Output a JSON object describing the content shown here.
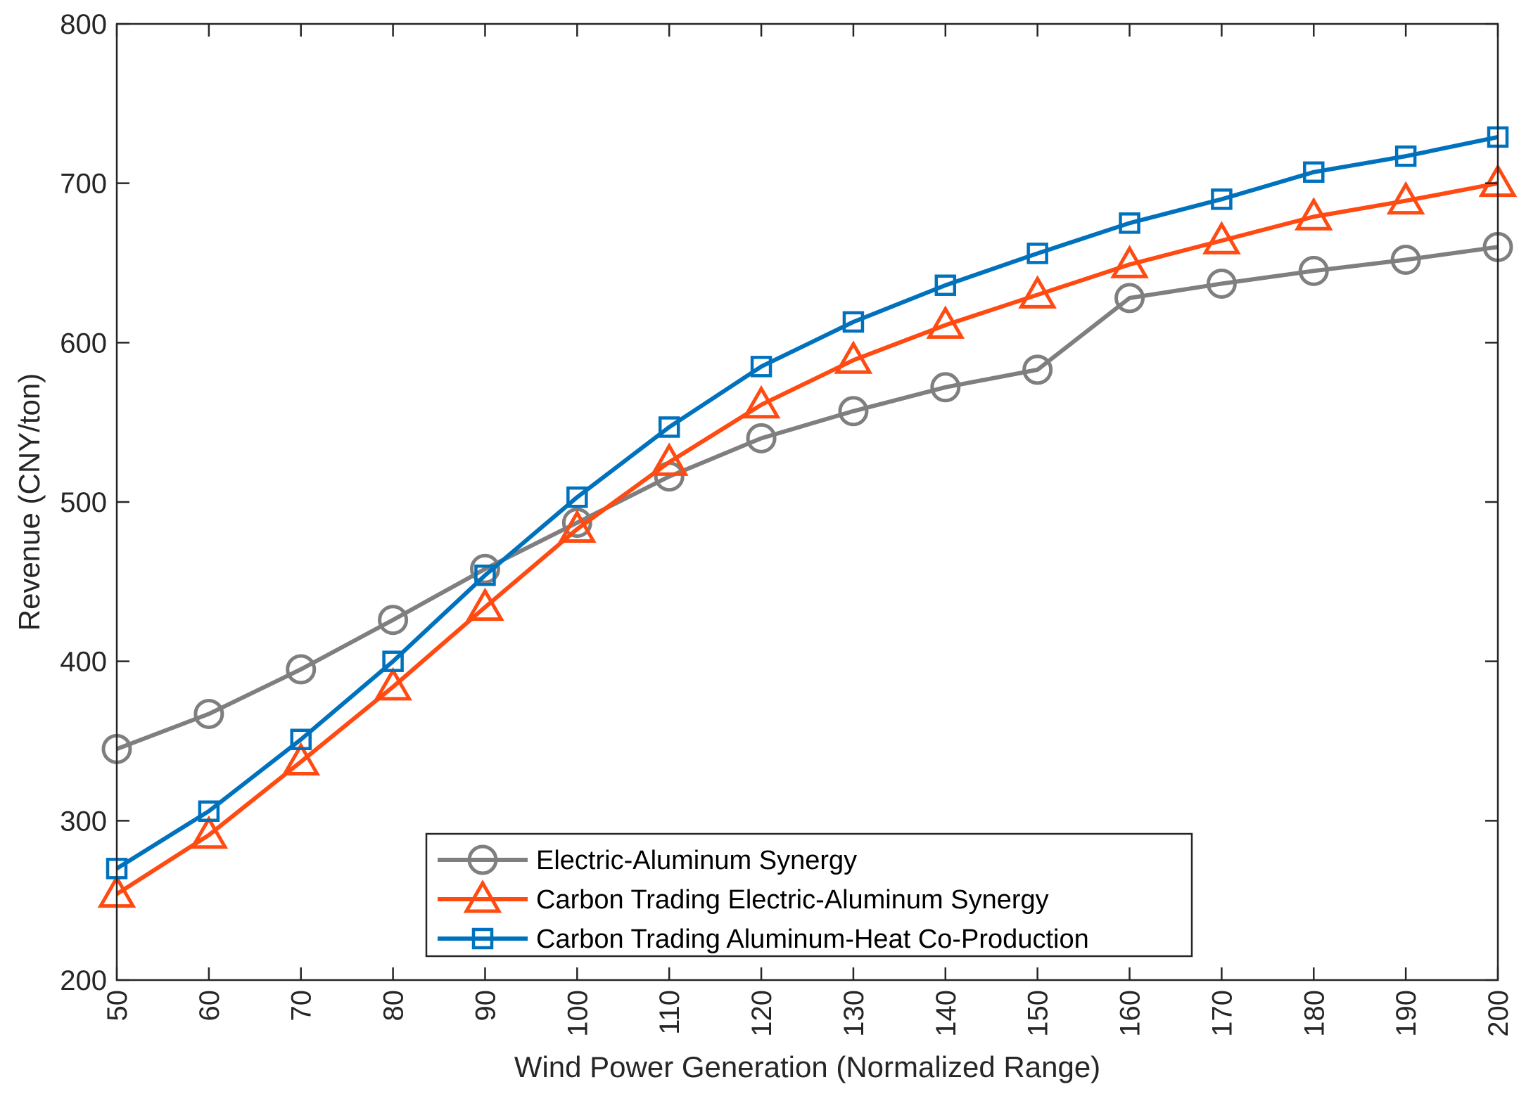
{
  "chart_data": {
    "type": "line",
    "title": "",
    "xlabel": "Wind Power Generation (Normalized Range)",
    "ylabel": "Revenue (CNY/ton)",
    "x": [
      50,
      60,
      70,
      80,
      90,
      100,
      110,
      120,
      130,
      140,
      150,
      160,
      170,
      180,
      190,
      200
    ],
    "xticks": [
      "50",
      "60",
      "70",
      "80",
      "90",
      "100",
      "110",
      "120",
      "130",
      "140",
      "150",
      "160",
      "170",
      "180",
      "190",
      "200"
    ],
    "xlim": [
      50,
      200
    ],
    "ylim": [
      200,
      800
    ],
    "yticks": [
      "200",
      "300",
      "400",
      "500",
      "600",
      "700",
      "800"
    ],
    "grid": false,
    "legend_position": "bottom-center",
    "series": [
      {
        "name": "Electric-Aluminum Synergy",
        "marker": "circle",
        "color": "#7f7f7f",
        "values": [
          345,
          367,
          395,
          426,
          458,
          487,
          516,
          540,
          557,
          572,
          583,
          628,
          637,
          645,
          652,
          660
        ]
      },
      {
        "name": "Carbon Trading Electric-Aluminum Synergy",
        "marker": "triangle",
        "color": "#ff4b12",
        "values": [
          254,
          291,
          337,
          384,
          434,
          483,
          525,
          561,
          589,
          611,
          630,
          649,
          664,
          679,
          689,
          700
        ]
      },
      {
        "name": "Carbon Trading Aluminum-Heat Co-Production",
        "marker": "square",
        "color": "#0072bd",
        "values": [
          270,
          306,
          351,
          400,
          454,
          503,
          547,
          585,
          613,
          636,
          656,
          675,
          690,
          707,
          717,
          729
        ]
      }
    ]
  }
}
